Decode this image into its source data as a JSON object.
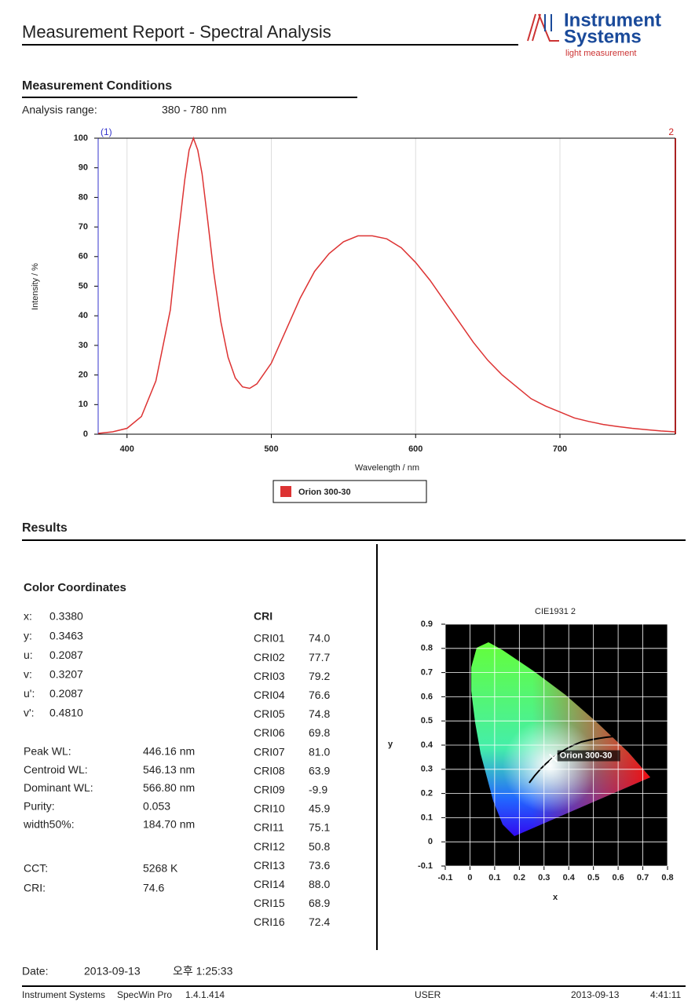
{
  "header": {
    "title": "Measurement Report - Spectral Analysis",
    "logo": [
      "Instrument",
      "Systems",
      "light measurement"
    ]
  },
  "conditions": {
    "heading": "Measurement Conditions",
    "label": "Analysis range:",
    "value": "380 - 780 nm"
  },
  "chart_data": [
    {
      "type": "line",
      "x_label": "Wavelength / nm",
      "y_label": "Intensity / %",
      "left_marker": "(1)",
      "right_marker": "2",
      "x": [
        380,
        390,
        400,
        410,
        420,
        430,
        435,
        440,
        443,
        446,
        449,
        452,
        456,
        460,
        465,
        470,
        475,
        480,
        485,
        490,
        500,
        510,
        520,
        530,
        540,
        550,
        560,
        570,
        580,
        590,
        600,
        610,
        620,
        630,
        640,
        650,
        660,
        670,
        680,
        690,
        700,
        710,
        720,
        730,
        740,
        750,
        760,
        770,
        780
      ],
      "series": [
        {
          "name": "Orion 300-30",
          "color": "#dd3333",
          "values": [
            0.3,
            0.8,
            2,
            6,
            18,
            42,
            65,
            86,
            96,
            100,
            96,
            88,
            72,
            55,
            38,
            26,
            19,
            16,
            15.5,
            17,
            24,
            35,
            46,
            55,
            61,
            65,
            67,
            67,
            66,
            63,
            58,
            52,
            45,
            38,
            31,
            25,
            20,
            16,
            12,
            9.5,
            7.5,
            5.5,
            4.3,
            3.3,
            2.6,
            2,
            1.5,
            1.1,
            0.8
          ]
        }
      ],
      "xlim": [
        380,
        780
      ],
      "xticks": [
        400,
        500,
        600,
        700
      ],
      "ylim": [
        0,
        100
      ],
      "yticks": [
        0,
        10,
        20,
        30,
        40,
        50,
        60,
        70,
        80,
        90,
        100
      ],
      "grid": "x"
    },
    {
      "type": "scatter",
      "title": "CIE1931 2",
      "x_label": "x",
      "y_label": "y",
      "series": [
        {
          "name": "Orion 300-30",
          "color": "#ffffff",
          "x": [
            0.338
          ],
          "values": [
            0.3463
          ]
        }
      ],
      "xlim": [
        -0.1,
        0.8
      ],
      "xticks": [
        -0.1,
        0,
        0.1,
        0.2,
        0.3,
        0.4,
        0.5,
        0.6,
        0.7,
        0.8
      ],
      "ylim": [
        -0.1,
        0.9
      ],
      "yticks": [
        -0.1,
        0,
        0.1,
        0.2,
        0.3,
        0.4,
        0.5,
        0.6,
        0.7,
        0.8,
        0.9
      ],
      "grid": true
    }
  ],
  "results": {
    "heading": "Results",
    "subheading": "Color Coordinates",
    "coordinates": [
      [
        "x:",
        "0.3380"
      ],
      [
        "y:",
        "0.3463"
      ],
      [
        "u:",
        "0.2087"
      ],
      [
        "v:",
        "0.3207"
      ],
      [
        "u':",
        "0.2087"
      ],
      [
        "v':",
        "0.4810"
      ]
    ],
    "spectral": [
      [
        "Peak WL:",
        "446.16 nm"
      ],
      [
        "Centroid WL:",
        "546.13 nm"
      ],
      [
        "Dominant WL:",
        "566.80 nm"
      ],
      [
        "Purity:",
        "0.053"
      ],
      [
        "width50%:",
        "184.70 nm"
      ]
    ],
    "summary": [
      [
        "CCT:",
        "5268 K"
      ],
      [
        "CRI:",
        "74.6"
      ]
    ],
    "cri_heading": "CRI",
    "cri": [
      [
        "CRI01",
        "74.0"
      ],
      [
        "CRI02",
        "77.7"
      ],
      [
        "CRI03",
        "79.2"
      ],
      [
        "CRI04",
        "76.6"
      ],
      [
        "CRI05",
        "74.8"
      ],
      [
        "CRI06",
        "69.8"
      ],
      [
        "CRI07",
        "81.0"
      ],
      [
        "CRI08",
        "63.9"
      ],
      [
        "CRI09",
        "-9.9"
      ],
      [
        "CRI10",
        "45.9"
      ],
      [
        "CRI11",
        "75.1"
      ],
      [
        "CRI12",
        "50.8"
      ],
      [
        "CRI13",
        "73.6"
      ],
      [
        "CRI14",
        "88.0"
      ],
      [
        "CRI15",
        "68.9"
      ],
      [
        "CRI16",
        "72.4"
      ]
    ]
  },
  "date": {
    "label": "Date:",
    "date": "2013-09-13",
    "time": "오후 1:25:33"
  },
  "footer": [
    "Instrument Systems",
    "SpecWin Pro",
    "1.4.1.414",
    "USER",
    "2013-09-13",
    "4:41:11"
  ]
}
